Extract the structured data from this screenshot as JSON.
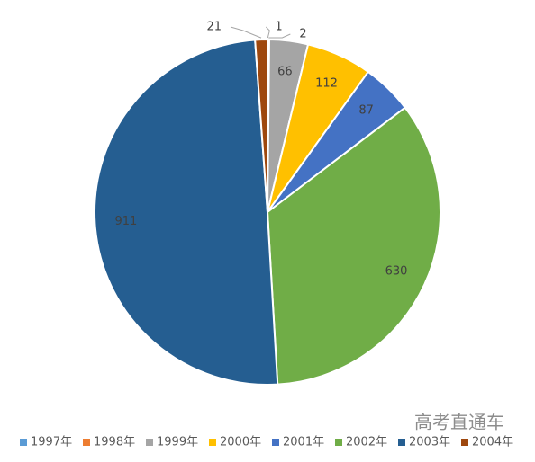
{
  "chart_data": {
    "type": "pie",
    "categories": [
      "1997年",
      "1998年",
      "1999年",
      "2000年",
      "2001年",
      "2002年",
      "2003年",
      "2004年"
    ],
    "values": [
      1,
      2,
      66,
      112,
      87,
      630,
      911,
      21
    ],
    "colors": [
      "#5b9bd5",
      "#ed7d31",
      "#a5a5a5",
      "#ffc000",
      "#4472c4",
      "#70ad47",
      "#255e91",
      "#9e480e"
    ],
    "legend": "bottom"
  },
  "watermark": "高考直通车"
}
